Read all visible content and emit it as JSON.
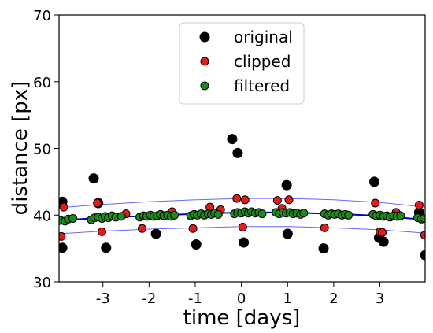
{
  "chart_data": {
    "type": "scatter",
    "title": "",
    "xlabel": "time [days]",
    "ylabel": "distance [px]",
    "xlim": [
      -3.95,
      3.98
    ],
    "ylim": [
      30,
      70
    ],
    "xticks": [
      -3,
      -2,
      -1,
      0,
      1,
      2,
      3
    ],
    "xtick_labels": [
      "-3",
      "-2",
      "-1",
      "0",
      "1",
      "2",
      "3"
    ],
    "yticks": [
      30,
      40,
      50,
      60,
      70
    ],
    "ytick_labels": [
      "30",
      "40",
      "50",
      "60",
      "70"
    ],
    "grid": false,
    "legend_position": "top-center",
    "legend": [
      {
        "label": "original",
        "color": "#000000"
      },
      {
        "label": "clipped",
        "color": "#e41a1c"
      },
      {
        "label": "filtered",
        "color": "#1a8a1a"
      }
    ],
    "fit": {
      "center": {
        "x": [
          -3.95,
          -3.0,
          -2.0,
          -1.0,
          0.0,
          1.0,
          2.0,
          3.0,
          3.98
        ],
        "y": [
          39.2,
          39.6,
          39.9,
          40.2,
          40.4,
          40.4,
          40.2,
          39.9,
          39.3
        ]
      },
      "upper": {
        "x": [
          -3.95,
          -3.0,
          -2.0,
          -1.0,
          0.0,
          1.0,
          2.0,
          3.0,
          3.98
        ],
        "y": [
          41.1,
          41.6,
          42.0,
          42.3,
          42.5,
          42.5,
          42.3,
          41.9,
          41.2
        ]
      },
      "lower": {
        "x": [
          -3.95,
          -3.0,
          -2.0,
          -1.0,
          0.0,
          1.0,
          2.0,
          3.0,
          3.98
        ],
        "y": [
          37.2,
          37.6,
          37.9,
          38.1,
          38.3,
          38.3,
          38.1,
          37.8,
          37.3
        ]
      },
      "center_color": "#0000cc",
      "band_color": "#6666ff"
    },
    "series": [
      {
        "name": "original",
        "color": "#000000",
        "points": [
          [
            -3.88,
            42.0
          ],
          [
            -3.88,
            35.1
          ],
          [
            -3.2,
            45.5
          ],
          [
            -3.1,
            41.8
          ],
          [
            -2.93,
            35.1
          ],
          [
            -1.85,
            37.2
          ],
          [
            -0.98,
            35.6
          ],
          [
            -0.2,
            51.4
          ],
          [
            -0.08,
            49.3
          ],
          [
            0.05,
            35.9
          ],
          [
            0.98,
            44.5
          ],
          [
            1.0,
            37.2
          ],
          [
            1.78,
            35.0
          ],
          [
            2.88,
            45.0
          ],
          [
            2.98,
            36.6
          ],
          [
            3.08,
            36.0
          ],
          [
            3.85,
            40.4
          ],
          [
            3.98,
            34.0
          ]
        ]
      },
      {
        "name": "clipped",
        "color": "#e41a1c",
        "points": [
          [
            -3.85,
            41.2
          ],
          [
            -3.9,
            36.8
          ],
          [
            -3.12,
            41.8
          ],
          [
            -3.02,
            37.5
          ],
          [
            -2.15,
            38.0
          ],
          [
            -1.5,
            40.5
          ],
          [
            -1.05,
            38.0
          ],
          [
            -0.45,
            40.8
          ],
          [
            -0.68,
            41.2
          ],
          [
            -0.1,
            42.5
          ],
          [
            0.08,
            42.3
          ],
          [
            0.03,
            38.2
          ],
          [
            0.78,
            42.2
          ],
          [
            0.88,
            41.0
          ],
          [
            1.03,
            42.3
          ],
          [
            1.8,
            38.1
          ],
          [
            2.9,
            41.8
          ],
          [
            3.0,
            37.5
          ],
          [
            3.05,
            37.4
          ],
          [
            3.35,
            40.4
          ],
          [
            3.85,
            41.5
          ],
          [
            3.97,
            37.0
          ],
          [
            -2.5,
            40.2
          ]
        ]
      },
      {
        "name": "filtered",
        "color": "#1a8a1a",
        "points": [
          [
            -3.92,
            39.2
          ],
          [
            -3.82,
            39.1
          ],
          [
            -3.75,
            39.4
          ],
          [
            -3.65,
            39.5
          ],
          [
            -3.25,
            39.3
          ],
          [
            -3.18,
            39.6
          ],
          [
            -3.1,
            39.7
          ],
          [
            -3.02,
            39.5
          ],
          [
            -2.95,
            39.8
          ],
          [
            -2.88,
            39.6
          ],
          [
            -2.8,
            39.9
          ],
          [
            -2.72,
            39.7
          ],
          [
            -2.6,
            39.8
          ],
          [
            -2.2,
            39.7
          ],
          [
            -2.12,
            39.9
          ],
          [
            -2.05,
            39.8
          ],
          [
            -1.97,
            40.0
          ],
          [
            -1.9,
            39.8
          ],
          [
            -1.82,
            39.9
          ],
          [
            -1.75,
            40.1
          ],
          [
            -1.68,
            39.9
          ],
          [
            -1.6,
            40.0
          ],
          [
            -1.52,
            39.8
          ],
          [
            -1.45,
            40.0
          ],
          [
            -1.1,
            39.9
          ],
          [
            -1.02,
            40.1
          ],
          [
            -0.95,
            40.0
          ],
          [
            -0.87,
            40.2
          ],
          [
            -0.8,
            40.0
          ],
          [
            -0.72,
            40.2
          ],
          [
            -0.65,
            40.1
          ],
          [
            -0.58,
            40.3
          ],
          [
            -0.5,
            40.1
          ],
          [
            -0.15,
            40.2
          ],
          [
            -0.08,
            40.4
          ],
          [
            0.0,
            40.3
          ],
          [
            0.08,
            40.5
          ],
          [
            0.15,
            40.3
          ],
          [
            0.22,
            40.5
          ],
          [
            0.3,
            40.3
          ],
          [
            0.38,
            40.4
          ],
          [
            0.45,
            40.2
          ],
          [
            0.75,
            40.4
          ],
          [
            0.82,
            40.2
          ],
          [
            0.9,
            40.4
          ],
          [
            0.97,
            40.3
          ],
          [
            1.05,
            40.4
          ],
          [
            1.12,
            40.2
          ],
          [
            1.2,
            40.3
          ],
          [
            1.28,
            40.1
          ],
          [
            1.35,
            40.3
          ],
          [
            1.8,
            40.2
          ],
          [
            1.88,
            40.0
          ],
          [
            1.95,
            40.2
          ],
          [
            2.02,
            40.1
          ],
          [
            2.1,
            40.2
          ],
          [
            2.18,
            40.0
          ],
          [
            2.25,
            40.1
          ],
          [
            2.32,
            40.0
          ],
          [
            2.85,
            40.1
          ],
          [
            2.92,
            39.9
          ],
          [
            3.0,
            40.0
          ],
          [
            3.08,
            39.8
          ],
          [
            3.15,
            39.9
          ],
          [
            3.22,
            39.7
          ],
          [
            3.3,
            39.9
          ],
          [
            3.37,
            39.8
          ],
          [
            3.45,
            39.9
          ],
          [
            3.82,
            39.6
          ],
          [
            3.9,
            39.4
          ],
          [
            3.96,
            39.5
          ]
        ]
      }
    ]
  }
}
